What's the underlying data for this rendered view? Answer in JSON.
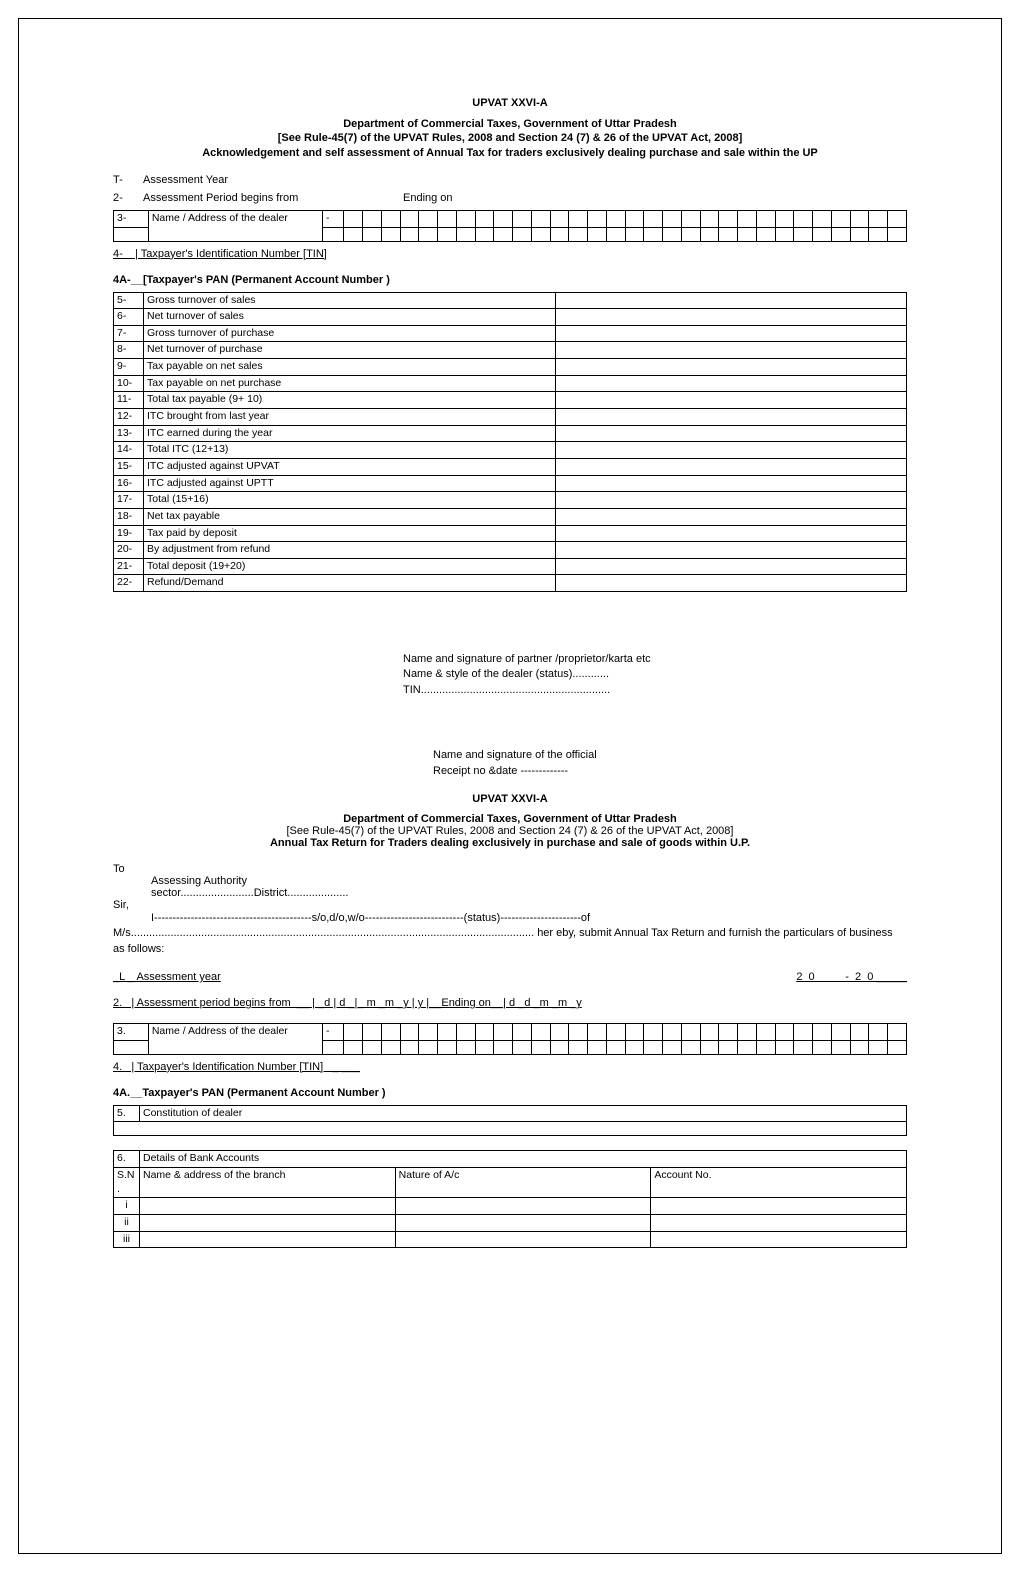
{
  "form_code": "UPVAT XXVI-A",
  "dept_title": "Department of Commercial Taxes, Government of Uttar Pradesh",
  "rule_ref": "[See Rule-45(7) of the UPVAT Rules, 2008 and Section 24 (7) & 26 of the UPVAT Act, 2008]",
  "header1_line3": "Acknowledgement and self assessment of Annual Tax for traders exclusively dealing purchase and sale within the UP",
  "item_T": "T-",
  "item_T_label": "Assessment Year",
  "item_2": "2-",
  "item_2_label": "Assessment Period begins from",
  "item_2_ending": "Ending on",
  "item_3": "3-",
  "item_3_label": "Name / Address of the dealer",
  "dash": "-",
  "item_4": "4-    | Taxpayer's Identification Number [TIN]",
  "item_4A": "4A-__[Taxpayer's PAN (Permanent Account Number )",
  "rows": [
    {
      "n": "5-",
      "label": "Gross turnover of sales"
    },
    {
      "n": "6-",
      "label": "Net turnover of sales"
    },
    {
      "n": "7-",
      "label": "Gross turnover of purchase"
    },
    {
      "n": "8-",
      "label": "Net turnover of purchase"
    },
    {
      "n": "9-",
      "label": "Tax payable on net sales"
    },
    {
      "n": "10-",
      "label": "Tax payable on net purchase"
    },
    {
      "n": "11-",
      "label": "Total tax payable (9+ 10)"
    },
    {
      "n": "12-",
      "label": "ITC brought from last year"
    },
    {
      "n": "13-",
      "label": "ITC earned during the year"
    },
    {
      "n": "14-",
      "label": "Total ITC (12+13)"
    },
    {
      "n": "15-",
      "label": "ITC adjusted against UPVAT"
    },
    {
      "n": "16-",
      "label": "ITC adjusted against UPTT"
    },
    {
      "n": "17-",
      "label": "Total (15+16)"
    },
    {
      "n": "18-",
      "label": "Net tax payable"
    },
    {
      "n": "19-",
      "label": "Tax paid by deposit"
    },
    {
      "n": "20-",
      "label": "By adjustment from refund"
    },
    {
      "n": "21-",
      "label": "Total deposit (19+20)"
    },
    {
      "n": "22-",
      "label": "Refund/Demand"
    }
  ],
  "sig1_l1": "Name and signature of partner /proprietor/karta etc",
  "sig1_l2": " Name & style of the dealer (status)............",
  "sig1_l3": "TIN..............................................................",
  "sig2_l1": "Name and signature of the official",
  "sig2_l2": "Receipt no &date -------------",
  "header2_line3": "Annual Tax Return for Traders dealing exclusively in purchase and sale of goods within U.P.",
  "to": "To",
  "assessing": "Assessing Authority",
  "sector_district": "sector........................District....................",
  "sir": "Sir,",
  "body1": "I-------------------------------------------s/o,d/o,w/o---------------------------(status)----------------------of M/s.................................................................................................................................... her eby, submit Annual Tax Return and furnish the particulars of business as follows:",
  "p2_1": "_L _ Assessment year",
  "p2_1_year": "2  0          -  2  0 _____",
  "p2_2": "2.   | Assessment period begins from  __ | _d | d _|_ m _m _y | y |__Ending on__| d _d _m _m _y",
  "p2_3": "3.",
  "p2_4": "4.   | Taxpayer's Identification Number [TIN]   _ ___",
  "p2_4A": "4A.__Taxpayer's PAN (Permanent Account Number )",
  "p2_5": "5.",
  "p2_5_label": "Constitution of dealer",
  "p2_6": "6.",
  "p2_6_label": "Details of Bank Accounts",
  "bank_headers": [
    "S.N .",
    "Name & address of the branch",
    "Nature of A/c",
    "Account No."
  ],
  "bank_rows": [
    "i",
    "ii",
    "iii"
  ]
}
